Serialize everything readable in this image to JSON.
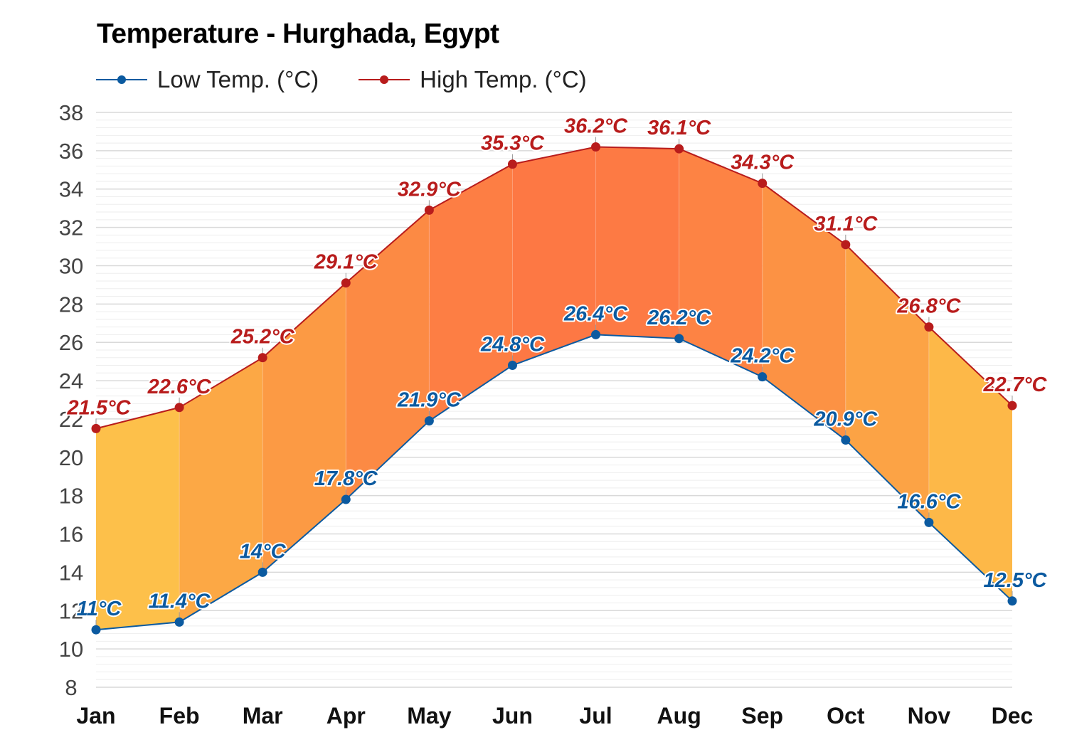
{
  "title": "Temperature - Hurghada, Egypt",
  "legend": [
    {
      "label": "Low Temp. (°C)",
      "color": "#0b5aa0",
      "icon": "line-dot-icon"
    },
    {
      "label": "High Temp. (°C)",
      "color": "#b81c1c",
      "icon": "line-dot-icon"
    }
  ],
  "colors": {
    "low": "#0b5aa0",
    "high": "#b81c1c",
    "grid_major": "#d9d9d9",
    "grid_minor": "#eeeeee",
    "band_fills": [
      "#fdc04a",
      "#fca845",
      "#fc9a44",
      "#fc8a44",
      "#fd7e44",
      "#fd7844",
      "#fd7a44",
      "#fd8344",
      "#fc9244",
      "#fca345",
      "#fdb848"
    ]
  },
  "chart_data": {
    "type": "area",
    "title": "Temperature - Hurghada, Egypt",
    "xlabel": "",
    "ylabel": "",
    "categories": [
      "Jan",
      "Feb",
      "Mar",
      "Apr",
      "May",
      "Jun",
      "Jul",
      "Aug",
      "Sep",
      "Oct",
      "Nov",
      "Dec"
    ],
    "series": [
      {
        "name": "Low Temp. (°C)",
        "values": [
          11,
          11.4,
          14,
          17.8,
          21.9,
          24.8,
          26.4,
          26.2,
          24.2,
          20.9,
          16.6,
          12.5
        ],
        "color": "#0b5aa0"
      },
      {
        "name": "High Temp. (°C)",
        "values": [
          21.5,
          22.6,
          25.2,
          29.1,
          32.9,
          35.3,
          36.2,
          36.1,
          34.3,
          31.1,
          26.8,
          22.7
        ],
        "color": "#b81c1c"
      }
    ],
    "data_labels": {
      "low": [
        "11°C",
        "11.4°C",
        "14°C",
        "17.8°C",
        "21.9°C",
        "24.8°C",
        "26.4°C",
        "26.2°C",
        "24.2°C",
        "20.9°C",
        "16.6°C",
        "12.5°C"
      ],
      "high": [
        "21.5°C",
        "22.6°C",
        "25.2°C",
        "29.1°C",
        "32.9°C",
        "35.3°C",
        "36.2°C",
        "36.1°C",
        "34.3°C",
        "31.1°C",
        "26.8°C",
        "22.7°C"
      ]
    },
    "yticks": [
      8,
      10,
      12,
      14,
      16,
      18,
      20,
      22,
      24,
      26,
      28,
      30,
      32,
      34,
      36,
      38
    ],
    "ylim": [
      8,
      38
    ],
    "grid": true,
    "legend_position": "top-left",
    "fill_between": "low-high range shaded yellow→orange by temperature"
  }
}
